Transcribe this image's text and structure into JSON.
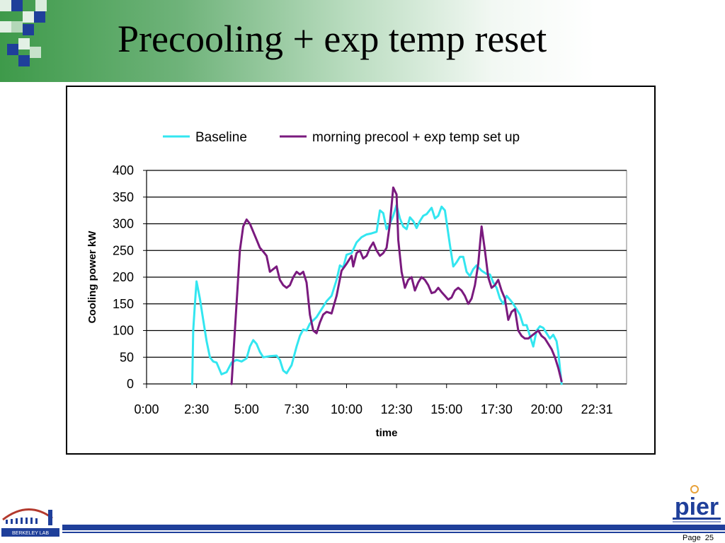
{
  "slide": {
    "title": "Precooling + exp temp reset",
    "page_label": "Page",
    "page_number": "25"
  },
  "logos": {
    "left": "berkeley-lab-logo",
    "left_text": "BERKELEY LAB",
    "right": "pier-logo",
    "right_text": "pier"
  },
  "colors": {
    "header_green": "#3e9a4a",
    "mosaic_blue": "#1f3f9a",
    "footer_blue": "#1f3f9a",
    "baseline": "#33e6f0",
    "precool": "#7a1a7e"
  },
  "chart_data": {
    "type": "line",
    "xlabel": "time",
    "ylabel": "Cooling power  kW",
    "ylim": [
      0,
      400
    ],
    "yticks": [
      "0",
      "50",
      "100",
      "150",
      "200",
      "250",
      "300",
      "350",
      "400"
    ],
    "xlim": [
      "0:00",
      "24:00"
    ],
    "xticks": [
      "0:00",
      "2:30",
      "5:00",
      "7:30",
      "10:00",
      "12:30",
      "15:00",
      "17:30",
      "20:00",
      "22:31"
    ],
    "grid": "horizontal",
    "legend": "top",
    "series": [
      {
        "name": "Baseline",
        "color": "#33e6f0",
        "points": [
          [
            "2:17",
            0
          ],
          [
            "2:20",
            100
          ],
          [
            "2:25",
            150
          ],
          [
            "2:30",
            192
          ],
          [
            "2:40",
            160
          ],
          [
            "2:50",
            120
          ],
          [
            "3:00",
            80
          ],
          [
            "3:10",
            50
          ],
          [
            "3:20",
            42
          ],
          [
            "3:30",
            40
          ],
          [
            "3:45",
            18
          ],
          [
            "4:00",
            22
          ],
          [
            "4:15",
            40
          ],
          [
            "4:30",
            45
          ],
          [
            "4:45",
            42
          ],
          [
            "5:00",
            48
          ],
          [
            "5:10",
            70
          ],
          [
            "5:20",
            82
          ],
          [
            "5:30",
            75
          ],
          [
            "5:40",
            60
          ],
          [
            "5:50",
            50
          ],
          [
            "6:10",
            52
          ],
          [
            "6:30",
            53
          ],
          [
            "6:40",
            45
          ],
          [
            "6:50",
            25
          ],
          [
            "7:00",
            20
          ],
          [
            "7:15",
            35
          ],
          [
            "7:30",
            70
          ],
          [
            "7:40",
            90
          ],
          [
            "7:50",
            102
          ],
          [
            "8:00",
            100
          ],
          [
            "8:10",
            113
          ],
          [
            "8:30",
            125
          ],
          [
            "8:45",
            140
          ],
          [
            "9:00",
            155
          ],
          [
            "9:15",
            165
          ],
          [
            "9:30",
            195
          ],
          [
            "9:40",
            222
          ],
          [
            "9:50",
            218
          ],
          [
            "10:00",
            242
          ],
          [
            "10:15",
            245
          ],
          [
            "10:30",
            265
          ],
          [
            "10:45",
            275
          ],
          [
            "11:00",
            280
          ],
          [
            "11:15",
            282
          ],
          [
            "11:30",
            285
          ],
          [
            "11:40",
            325
          ],
          [
            "11:50",
            320
          ],
          [
            "12:00",
            290
          ],
          [
            "12:10",
            300
          ],
          [
            "12:20",
            315
          ],
          [
            "12:30",
            335
          ],
          [
            "12:40",
            310
          ],
          [
            "12:50",
            295
          ],
          [
            "13:00",
            290
          ],
          [
            "13:10",
            312
          ],
          [
            "13:20",
            305
          ],
          [
            "13:30",
            292
          ],
          [
            "13:40",
            305
          ],
          [
            "13:50",
            315
          ],
          [
            "14:00",
            318
          ],
          [
            "14:15",
            330
          ],
          [
            "14:25",
            310
          ],
          [
            "14:35",
            315
          ],
          [
            "14:45",
            332
          ],
          [
            "14:55",
            325
          ],
          [
            "15:10",
            260
          ],
          [
            "15:20",
            220
          ],
          [
            "15:30",
            228
          ],
          [
            "15:40",
            238
          ],
          [
            "15:50",
            238
          ],
          [
            "16:00",
            210
          ],
          [
            "16:10",
            202
          ],
          [
            "16:20",
            215
          ],
          [
            "16:30",
            222
          ],
          [
            "16:45",
            212
          ],
          [
            "17:00",
            206
          ],
          [
            "17:10",
            205
          ],
          [
            "17:20",
            190
          ],
          [
            "17:30",
            180
          ],
          [
            "17:40",
            160
          ],
          [
            "17:50",
            150
          ],
          [
            "18:00",
            165
          ],
          [
            "18:10",
            158
          ],
          [
            "18:20",
            150
          ],
          [
            "18:30",
            140
          ],
          [
            "18:40",
            130
          ],
          [
            "18:50",
            110
          ],
          [
            "19:00",
            110
          ],
          [
            "19:10",
            90
          ],
          [
            "19:20",
            70
          ],
          [
            "19:30",
            100
          ],
          [
            "19:40",
            108
          ],
          [
            "19:50",
            105
          ],
          [
            "20:00",
            95
          ],
          [
            "20:10",
            85
          ],
          [
            "20:20",
            92
          ],
          [
            "20:30",
            80
          ],
          [
            "20:35",
            60
          ],
          [
            "20:45",
            0
          ]
        ]
      },
      {
        "name": "morning precool + exp temp set up",
        "color": "#7a1a7e",
        "points": [
          [
            "4:15",
            0
          ],
          [
            "4:20",
            50
          ],
          [
            "4:30",
            150
          ],
          [
            "4:40",
            250
          ],
          [
            "4:50",
            295
          ],
          [
            "5:00",
            308
          ],
          [
            "5:10",
            300
          ],
          [
            "5:20",
            285
          ],
          [
            "5:30",
            270
          ],
          [
            "5:40",
            255
          ],
          [
            "5:50",
            248
          ],
          [
            "6:00",
            240
          ],
          [
            "6:10",
            210
          ],
          [
            "6:20",
            215
          ],
          [
            "6:30",
            220
          ],
          [
            "6:40",
            195
          ],
          [
            "6:50",
            185
          ],
          [
            "7:00",
            180
          ],
          [
            "7:10",
            185
          ],
          [
            "7:20",
            200
          ],
          [
            "7:30",
            210
          ],
          [
            "7:40",
            205
          ],
          [
            "7:50",
            210
          ],
          [
            "8:00",
            190
          ],
          [
            "8:10",
            130
          ],
          [
            "8:20",
            100
          ],
          [
            "8:30",
            95
          ],
          [
            "8:40",
            115
          ],
          [
            "8:50",
            130
          ],
          [
            "9:00",
            135
          ],
          [
            "9:15",
            132
          ],
          [
            "9:30",
            165
          ],
          [
            "9:45",
            212
          ],
          [
            "10:00",
            225
          ],
          [
            "10:15",
            240
          ],
          [
            "10:20",
            220
          ],
          [
            "10:30",
            245
          ],
          [
            "10:40",
            250
          ],
          [
            "10:50",
            235
          ],
          [
            "11:00",
            240
          ],
          [
            "11:10",
            255
          ],
          [
            "11:20",
            265
          ],
          [
            "11:30",
            250
          ],
          [
            "11:40",
            240
          ],
          [
            "11:50",
            245
          ],
          [
            "12:00",
            255
          ],
          [
            "12:10",
            300
          ],
          [
            "12:20",
            368
          ],
          [
            "12:30",
            355
          ],
          [
            "12:35",
            270
          ],
          [
            "12:45",
            210
          ],
          [
            "12:55",
            180
          ],
          [
            "13:05",
            195
          ],
          [
            "13:15",
            200
          ],
          [
            "13:25",
            175
          ],
          [
            "13:35",
            190
          ],
          [
            "13:45",
            200
          ],
          [
            "13:55",
            195
          ],
          [
            "14:05",
            185
          ],
          [
            "14:15",
            170
          ],
          [
            "14:25",
            172
          ],
          [
            "14:35",
            180
          ],
          [
            "14:45",
            172
          ],
          [
            "14:55",
            165
          ],
          [
            "15:05",
            158
          ],
          [
            "15:15",
            162
          ],
          [
            "15:25",
            175
          ],
          [
            "15:35",
            180
          ],
          [
            "15:45",
            175
          ],
          [
            "15:55",
            165
          ],
          [
            "16:05",
            150
          ],
          [
            "16:15",
            160
          ],
          [
            "16:25",
            185
          ],
          [
            "16:35",
            225
          ],
          [
            "16:45",
            295
          ],
          [
            "16:55",
            250
          ],
          [
            "17:05",
            200
          ],
          [
            "17:15",
            180
          ],
          [
            "17:25",
            185
          ],
          [
            "17:35",
            195
          ],
          [
            "17:45",
            175
          ],
          [
            "17:55",
            160
          ],
          [
            "18:05",
            120
          ],
          [
            "18:15",
            135
          ],
          [
            "18:25",
            140
          ],
          [
            "18:35",
            100
          ],
          [
            "18:45",
            90
          ],
          [
            "18:55",
            85
          ],
          [
            "19:05",
            85
          ],
          [
            "19:15",
            90
          ],
          [
            "19:25",
            95
          ],
          [
            "19:35",
            100
          ],
          [
            "19:45",
            90
          ],
          [
            "19:55",
            85
          ],
          [
            "20:05",
            75
          ],
          [
            "20:15",
            65
          ],
          [
            "20:25",
            50
          ],
          [
            "20:35",
            30
          ],
          [
            "20:45",
            5
          ]
        ]
      }
    ]
  }
}
